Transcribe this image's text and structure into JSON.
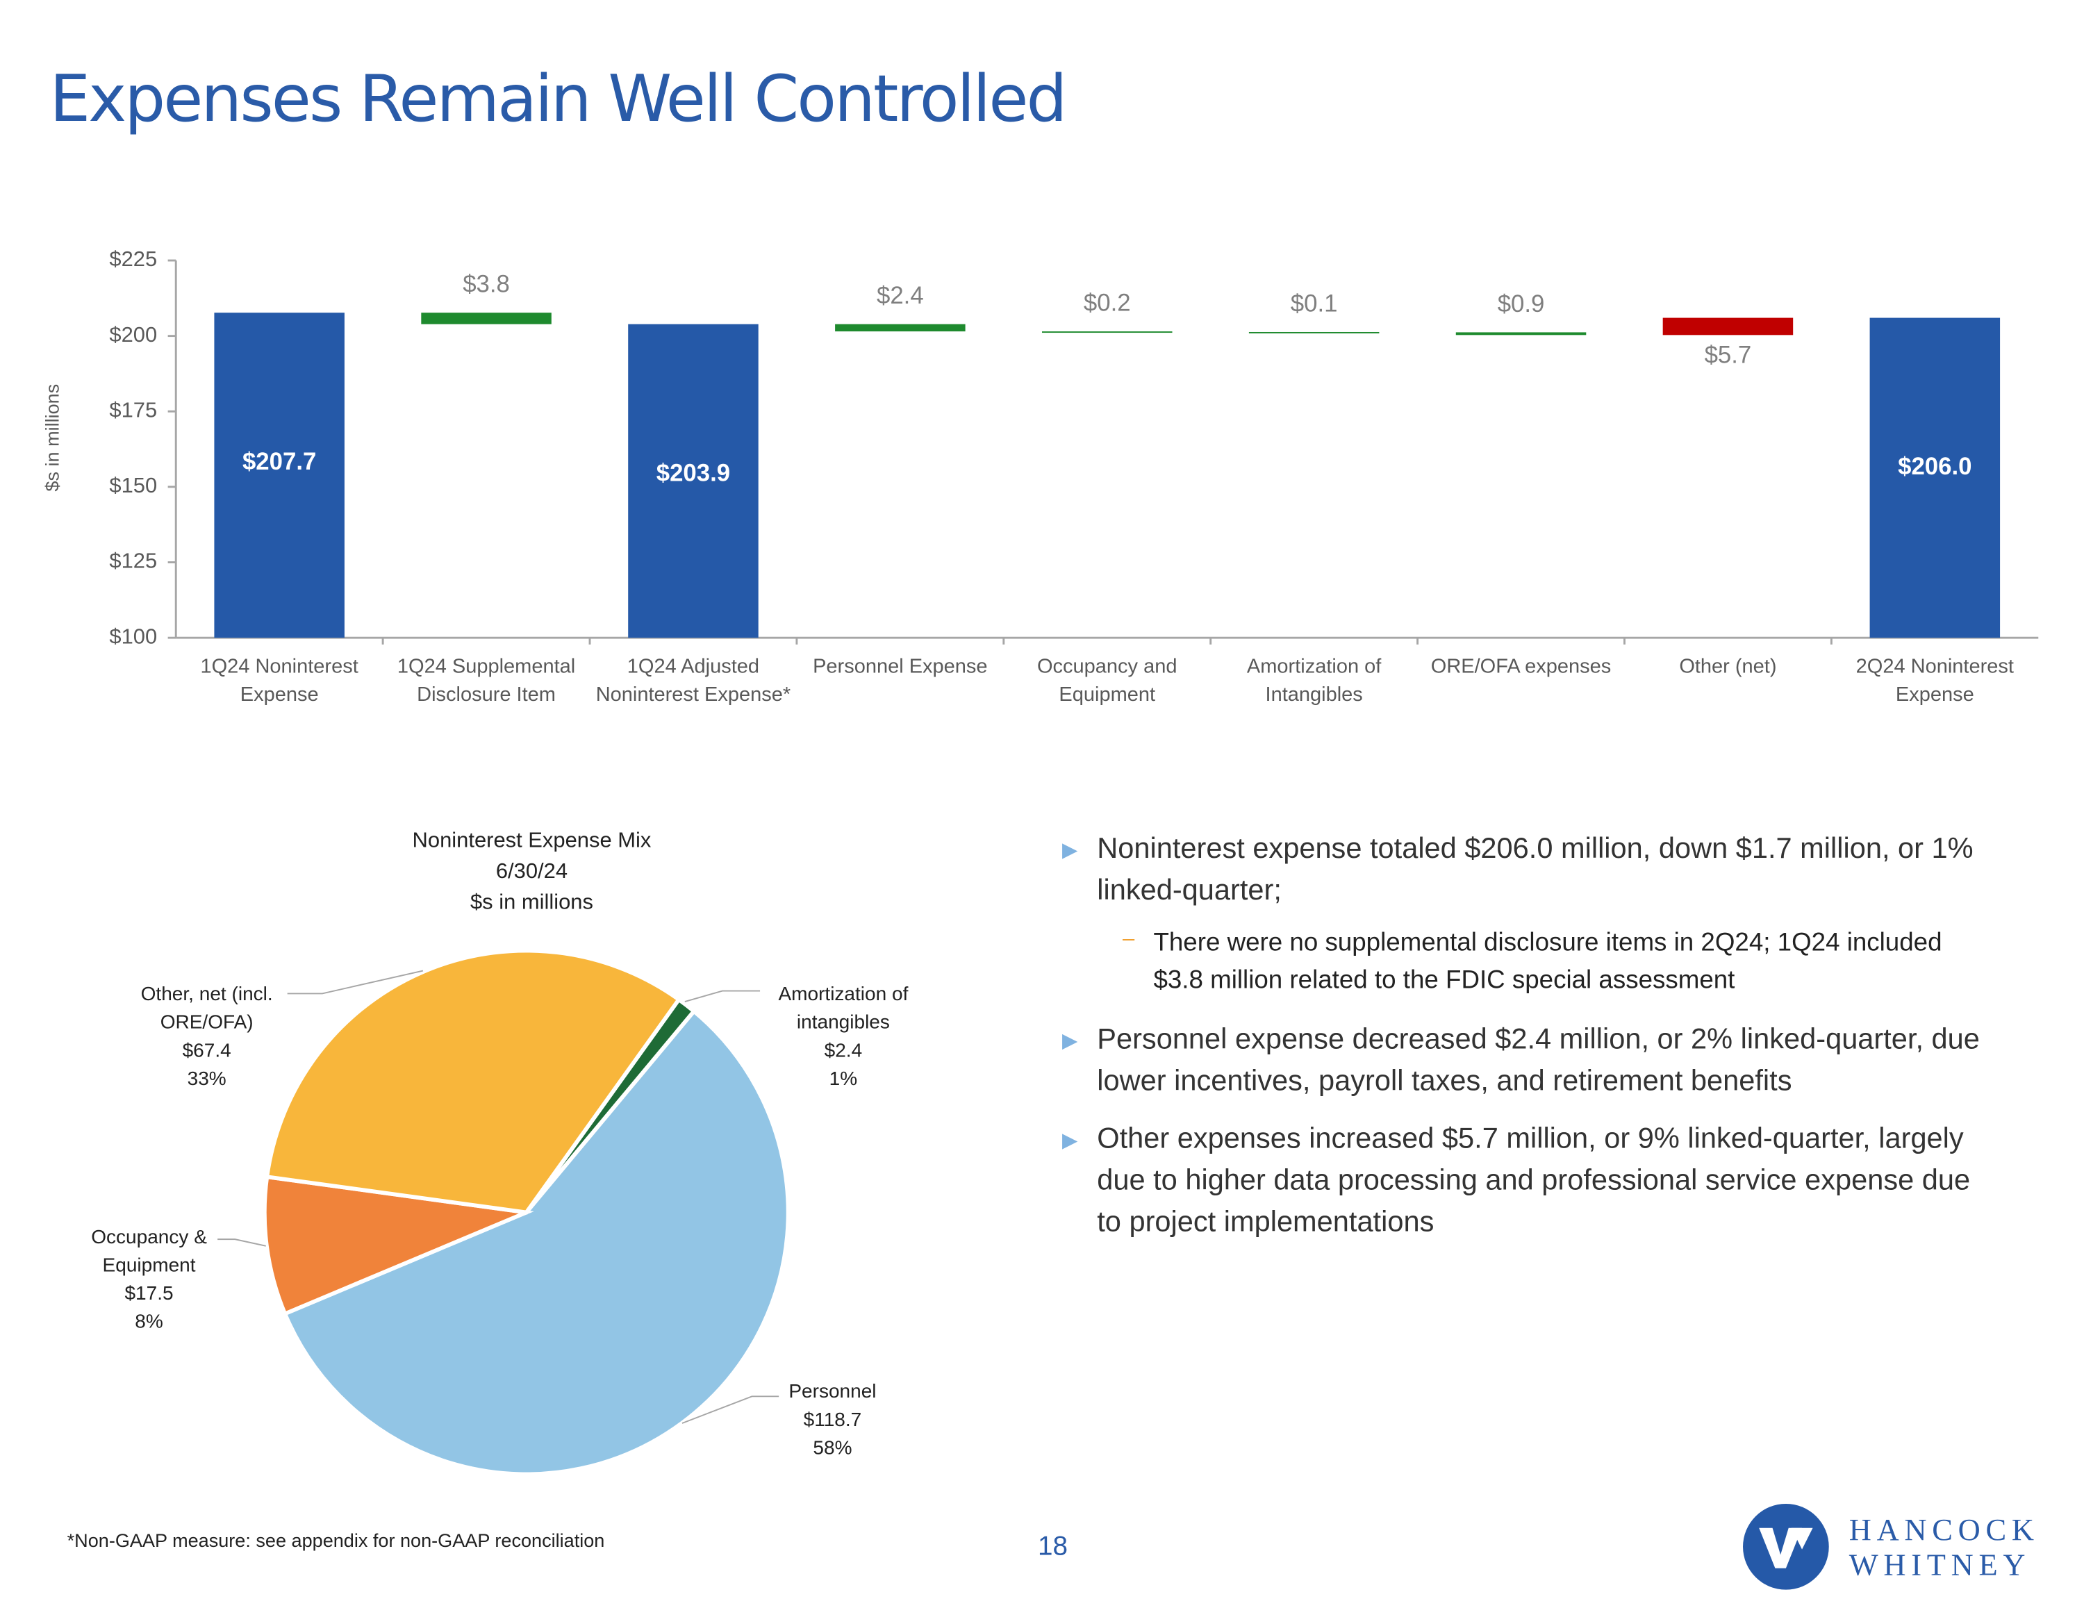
{
  "title": "Expenses Remain Well Controlled",
  "chart_data": [
    {
      "type": "waterfall",
      "ylabel": "$s in millions",
      "categories": [
        "1Q24 Noninterest Expense",
        "1Q24 Supplemental Disclosure Item",
        "1Q24 Adjusted Noninterest Expense*",
        "Personnel Expense",
        "Occupancy and Equipment",
        "Amortization of Intangibles",
        "ORE/OFA expenses",
        "Other (net)",
        "2Q24 Noninterest Expense"
      ],
      "values": [
        207.7,
        3.8,
        203.9,
        2.4,
        0.2,
        0.1,
        0.9,
        5.7,
        206.0
      ],
      "value_labels": [
        "$207.7",
        "$3.8",
        "$203.9",
        "$2.4",
        "$0.2",
        "$0.1",
        "$0.9",
        "$5.7",
        "$206.0"
      ],
      "bar_kinds": [
        "total",
        "decrease",
        "total",
        "decrease",
        "decrease",
        "decrease",
        "decrease",
        "increase",
        "total"
      ],
      "colors": {
        "total": "#2559a8",
        "decrease": "#1e8a2e",
        "increase": "#c00000"
      },
      "ylim": [
        100,
        225
      ],
      "yticks": [
        {
          "value": 100,
          "label": "$100"
        },
        {
          "value": 125,
          "label": "$125"
        },
        {
          "value": 150,
          "label": "$150"
        },
        {
          "value": 175,
          "label": "$175"
        },
        {
          "value": 200,
          "label": "$200"
        },
        {
          "value": 225,
          "label": "$225"
        }
      ]
    },
    {
      "type": "pie",
      "title": "Noninterest Expense Mix",
      "subtitle": "6/30/24",
      "unit_note": "$s in millions",
      "categories": [
        "Amortization of intangibles",
        "Personnel",
        "Occupancy & Equipment",
        "Other, net (incl. ORE/OFA)"
      ],
      "values": [
        2.4,
        118.7,
        17.5,
        67.4
      ],
      "value_labels": [
        "$2.4",
        "$118.7",
        "$17.5",
        "$67.4"
      ],
      "percents": [
        1,
        58,
        8,
        33
      ],
      "percent_labels": [
        "1%",
        "58%",
        "8%",
        "33%"
      ],
      "colors": [
        "#1e6b36",
        "#92c5e5",
        "#f0833a",
        "#f8b63b"
      ]
    }
  ],
  "bullets": [
    {
      "text": "Noninterest expense totaled $206.0 million, down $1.7 million, or 1% linked-quarter;",
      "subs": [
        "There were no supplemental disclosure items in 2Q24; 1Q24 included $3.8 million related to the FDIC special assessment"
      ]
    },
    {
      "text": "Personnel expense decreased $2.4 million, or 2% linked-quarter, due lower incentives, payroll taxes, and retirement benefits",
      "subs": []
    },
    {
      "text": "Other expenses increased $5.7 million, or 9% linked-quarter, largely due to higher data processing and professional service expense due to project implementations",
      "subs": []
    }
  ],
  "footnote": "*Non-GAAP measure: see appendix for non-GAAP reconciliation",
  "page_number": "18",
  "logo": {
    "line1": "HANCOCK",
    "line2": "WHITNEY"
  }
}
